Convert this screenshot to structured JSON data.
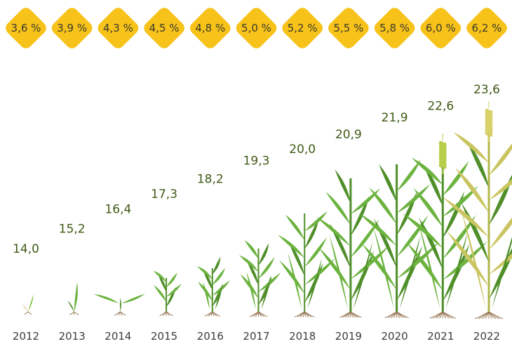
{
  "chart_data": {
    "type": "pictogram",
    "title": "",
    "categories": [
      "2012",
      "2013",
      "2014",
      "2015",
      "2016",
      "2017",
      "2018",
      "2019",
      "2020",
      "2021",
      "2022"
    ],
    "series": [
      {
        "values": [
          14.0,
          15.2,
          16.4,
          17.3,
          18.2,
          19.3,
          20.0,
          20.9,
          21.9,
          22.6,
          23.6
        ],
        "labels": [
          "14,0",
          "15,2",
          "16,4",
          "17,3",
          "18,2",
          "19,3",
          "20,0",
          "20,9",
          "21,9",
          "22,6",
          "23,6"
        ]
      },
      {
        "values": [
          3.6,
          3.9,
          4.3,
          4.5,
          4.8,
          5.0,
          5.2,
          5.5,
          5.8,
          6.0,
          6.2
        ],
        "labels": [
          "3,6 %",
          "3,9 %",
          "4,3 %",
          "4,5 %",
          "4,8 %",
          "5,0 %",
          "5,2 %",
          "5,5 %",
          "5,8 %",
          "6,0 %",
          "6,2 %"
        ]
      }
    ],
    "colors": {
      "badge": "#f7c21a",
      "value_text": "#3f5a16",
      "plant_green": "#6cb33f",
      "plant_dark": "#4f8f2a",
      "ripe_stem": "#b3b84a",
      "root": "#9b7b5a"
    }
  }
}
